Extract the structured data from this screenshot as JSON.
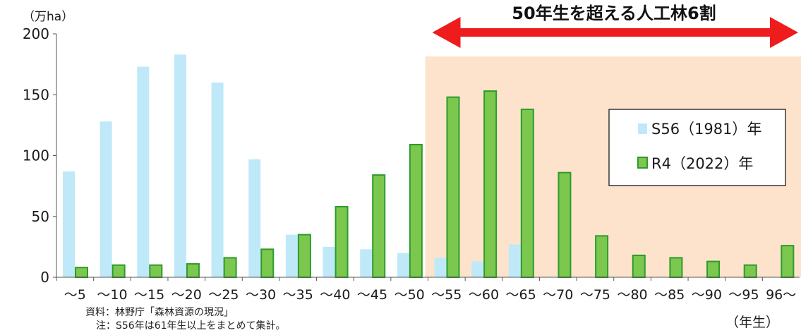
{
  "chart_data": {
    "type": "bar",
    "y_unit": "（万ha）",
    "x_unit": "（年生）",
    "ylim": [
      0,
      200
    ],
    "yticks": [
      0,
      50,
      100,
      150,
      200
    ],
    "categories": [
      "～5",
      "～10",
      "～15",
      "～20",
      "～25",
      "～30",
      "～35",
      "～40",
      "～45",
      "～50",
      "～55",
      "～60",
      "～65",
      "～70",
      "～75",
      "～80",
      "～85",
      "～90",
      "～95",
      "96～"
    ],
    "series": [
      {
        "name": "S56（1981）年",
        "color": "#bfe9f9",
        "values": [
          87,
          128,
          173,
          183,
          160,
          97,
          35,
          25,
          23,
          20,
          16,
          13,
          27,
          0,
          0,
          0,
          0,
          0,
          0,
          0
        ]
      },
      {
        "name": "R4（2022）年",
        "color": "#7cc84e",
        "edge": "#2e9a2e",
        "values": [
          8,
          10,
          10,
          11,
          16,
          23,
          35,
          58,
          84,
          109,
          148,
          153,
          138,
          86,
          34,
          18,
          16,
          13,
          10,
          26
        ]
      }
    ],
    "highlight": {
      "from_category": "～55",
      "to_category": "96～",
      "color": "#fde3cc"
    },
    "annotation": {
      "text": "50年生を超える人工林6割",
      "arrow_color": "#ee1c1c"
    },
    "legend_position": "right",
    "grid": false
  },
  "notes": {
    "source": "資料：林野庁「森林資源の現況」",
    "remark": "注：S56年は61年生以上をまとめて集計。"
  }
}
